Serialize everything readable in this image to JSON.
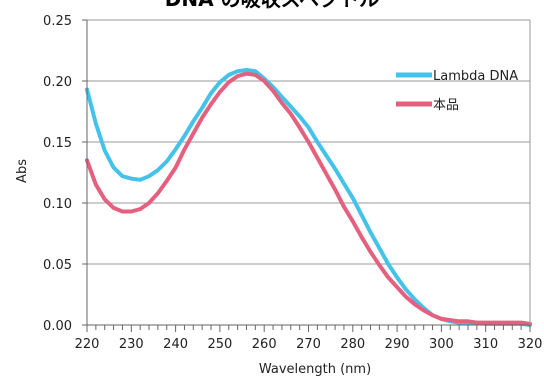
{
  "chart_data": {
    "type": "line",
    "title": "DNA の吸収スペクトル",
    "xlabel": "Wavelength (nm)",
    "ylabel": "Abs",
    "xlim": [
      220,
      320
    ],
    "ylim": [
      0,
      0.25
    ],
    "x_ticks": [
      "220",
      "230",
      "240",
      "250",
      "260",
      "270",
      "280",
      "290",
      "300",
      "310",
      "320"
    ],
    "y_ticks": [
      "0.00",
      "0.05",
      "0.10",
      "0.15",
      "0.20",
      "0.25"
    ],
    "grid": "horizontal",
    "legend": "right",
    "colors": {
      "lambda": "#45c2ea",
      "product": "#e5607f",
      "grid": "#9a9a9a",
      "frame": "#666666"
    },
    "series": [
      {
        "name": "Lambda DNA",
        "x": [
          220,
          222,
          224,
          226,
          228,
          230,
          232,
          234,
          236,
          238,
          240,
          242,
          244,
          246,
          248,
          250,
          252,
          254,
          256,
          258,
          260,
          262,
          264,
          266,
          268,
          270,
          272,
          274,
          276,
          278,
          280,
          282,
          284,
          286,
          288,
          290,
          292,
          294,
          296,
          298,
          300,
          302,
          304,
          306,
          308,
          310,
          312,
          314,
          316,
          318,
          320
        ],
        "values": [
          0.193,
          0.165,
          0.143,
          0.129,
          0.122,
          0.12,
          0.119,
          0.122,
          0.127,
          0.134,
          0.144,
          0.155,
          0.167,
          0.178,
          0.19,
          0.199,
          0.205,
          0.208,
          0.209,
          0.208,
          0.202,
          0.195,
          0.187,
          0.179,
          0.171,
          0.162,
          0.15,
          0.139,
          0.128,
          0.116,
          0.104,
          0.09,
          0.076,
          0.063,
          0.05,
          0.039,
          0.029,
          0.021,
          0.014,
          0.008,
          0.005,
          0.003,
          0.002,
          0.002,
          0.002,
          0.001,
          0.001,
          0.001,
          0.001,
          0.001,
          0.0
        ]
      },
      {
        "name": "本品",
        "x": [
          220,
          222,
          224,
          226,
          228,
          230,
          232,
          234,
          236,
          238,
          240,
          242,
          244,
          246,
          248,
          250,
          252,
          254,
          256,
          258,
          260,
          262,
          264,
          266,
          268,
          270,
          272,
          274,
          276,
          278,
          280,
          282,
          284,
          286,
          288,
          290,
          292,
          294,
          296,
          298,
          300,
          302,
          304,
          306,
          308,
          310,
          312,
          314,
          316,
          318,
          320
        ],
        "values": [
          0.135,
          0.115,
          0.103,
          0.096,
          0.093,
          0.093,
          0.095,
          0.1,
          0.108,
          0.118,
          0.129,
          0.144,
          0.157,
          0.17,
          0.181,
          0.191,
          0.199,
          0.204,
          0.206,
          0.205,
          0.2,
          0.192,
          0.182,
          0.173,
          0.162,
          0.15,
          0.137,
          0.124,
          0.111,
          0.097,
          0.085,
          0.072,
          0.06,
          0.049,
          0.039,
          0.031,
          0.023,
          0.017,
          0.012,
          0.008,
          0.005,
          0.004,
          0.003,
          0.003,
          0.002,
          0.002,
          0.002,
          0.002,
          0.002,
          0.002,
          0.001
        ]
      }
    ]
  }
}
